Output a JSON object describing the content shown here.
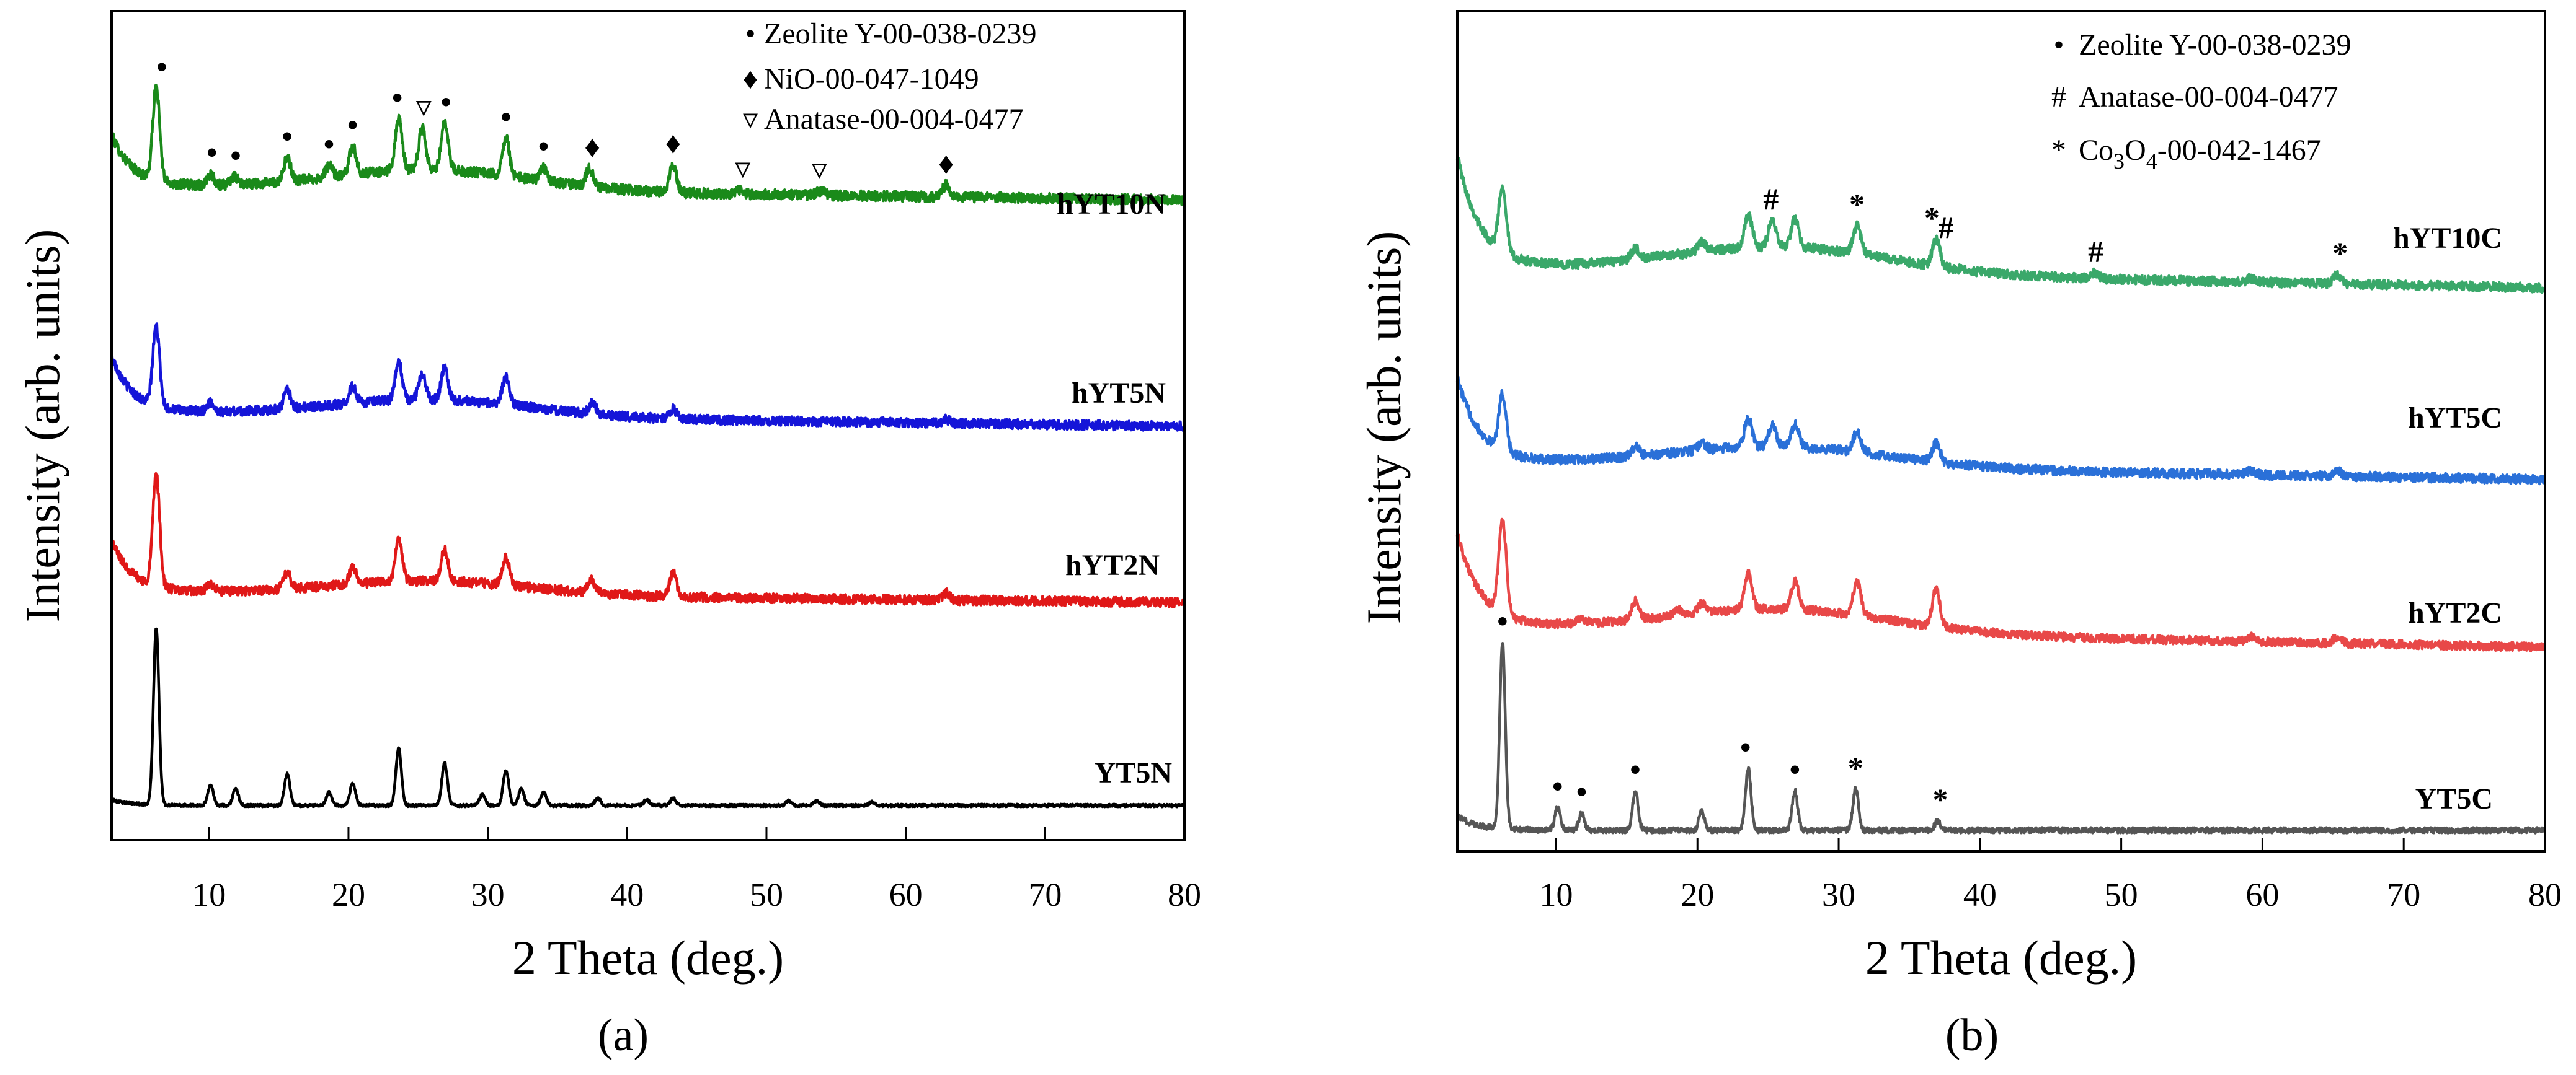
{
  "chart_data": [
    {
      "type": "line",
      "panel_label_text": "(a)",
      "xlabel": "2 Theta (deg.)",
      "ylabel": "Intensity (arb. units)",
      "xlim": [
        3,
        80
      ],
      "x_ticks": [
        10,
        20,
        30,
        40,
        50,
        60,
        70,
        80
      ],
      "y_ticks_shown": false,
      "legend": {
        "placement": "top-right",
        "entries": [
          {
            "symbol": "dot",
            "glyph": "•",
            "text": "Zeolite Y-00-038-0239"
          },
          {
            "symbol": "diamond",
            "glyph": "♦",
            "text": "NiO-00-047-1049"
          },
          {
            "symbol": "triangle-down",
            "glyph": "▿",
            "text": "Anatase-00-004-0477"
          }
        ]
      },
      "series": [
        {
          "name": "hYT10N",
          "color": "#1a8a1a",
          "baseline": 3.28,
          "slope": -0.002,
          "amorphous": {
            "amp": 0.22,
            "center": 26,
            "width": 10
          },
          "low_angle": {
            "amp": 0.55,
            "width": 1.5
          },
          "noise": 0.055,
          "peaks": [
            [
              6.2,
              1.0
            ],
            [
              10.1,
              0.12
            ],
            [
              11.8,
              0.08
            ],
            [
              15.6,
              0.25
            ],
            [
              18.6,
              0.12
            ],
            [
              20.3,
              0.3
            ],
            [
              23.6,
              0.55
            ],
            [
              25.3,
              0.45
            ],
            [
              26.9,
              0.5
            ],
            [
              31.3,
              0.4
            ],
            [
              34.0,
              0.14
            ],
            [
              37.3,
              0.2
            ],
            [
              43.3,
              0.3
            ],
            [
              48.1,
              0.05
            ],
            [
              53.9,
              0.05
            ],
            [
              62.9,
              0.13
            ]
          ],
          "peak_width": 0.35,
          "markers": [
            {
              "x": 6.6,
              "h": 1.0,
              "glyph": "•"
            },
            {
              "x": 10.2,
              "h": 0.12,
              "glyph": "•"
            },
            {
              "x": 11.9,
              "h": 0.08,
              "glyph": "•"
            },
            {
              "x": 15.6,
              "h": 0.25,
              "glyph": "•"
            },
            {
              "x": 18.6,
              "h": 0.12,
              "glyph": "•"
            },
            {
              "x": 20.3,
              "h": 0.3,
              "glyph": "•"
            },
            {
              "x": 23.5,
              "h": 0.55,
              "glyph": "•"
            },
            {
              "x": 25.4,
              "h": 0.45,
              "glyph": "▿"
            },
            {
              "x": 27.0,
              "h": 0.5,
              "glyph": "•"
            },
            {
              "x": 31.3,
              "h": 0.4,
              "glyph": "•"
            },
            {
              "x": 34.0,
              "h": 0.14,
              "glyph": "•"
            },
            {
              "x": 37.5,
              "h": 0.2,
              "glyph": "♦"
            },
            {
              "x": 43.3,
              "h": 0.3,
              "glyph": "♦"
            },
            {
              "x": 48.3,
              "h": 0.05,
              "glyph": "▿"
            },
            {
              "x": 53.8,
              "h": 0.05,
              "glyph": "▿"
            },
            {
              "x": 62.9,
              "h": 0.13,
              "glyph": "♦"
            }
          ]
        },
        {
          "name": "hYT5N",
          "color": "#1515d8",
          "baseline": 2.12,
          "slope": -0.002,
          "amorphous": {
            "amp": 0.18,
            "center": 26,
            "width": 10
          },
          "low_angle": {
            "amp": 0.6,
            "width": 1.5
          },
          "noise": 0.05,
          "peaks": [
            [
              6.2,
              0.85
            ],
            [
              10.1,
              0.1
            ],
            [
              15.6,
              0.2
            ],
            [
              20.3,
              0.18
            ],
            [
              23.6,
              0.4
            ],
            [
              25.3,
              0.28
            ],
            [
              26.9,
              0.34
            ],
            [
              31.3,
              0.3
            ],
            [
              37.5,
              0.12
            ],
            [
              43.3,
              0.1
            ],
            [
              62.9,
              0.04
            ]
          ],
          "peak_width": 0.35,
          "markers": []
        },
        {
          "name": "hYT2N",
          "color": "#e01818",
          "baseline": 1.02,
          "slope": -0.0015,
          "amorphous": {
            "amp": 0.15,
            "center": 26,
            "width": 10
          },
          "low_angle": {
            "amp": 0.55,
            "width": 1.5
          },
          "noise": 0.05,
          "peaks": [
            [
              6.2,
              1.2
            ],
            [
              10.1,
              0.08
            ],
            [
              15.6,
              0.18
            ],
            [
              20.3,
              0.18
            ],
            [
              23.6,
              0.45
            ],
            [
              26.9,
              0.34
            ],
            [
              31.3,
              0.3
            ],
            [
              37.4,
              0.15
            ],
            [
              43.3,
              0.26
            ],
            [
              62.9,
              0.08
            ]
          ],
          "peak_width": 0.35,
          "markers": []
        },
        {
          "name": "YT5N",
          "color": "#000000",
          "baseline": 0.0,
          "slope": 0,
          "amorphous": {
            "amp": 0.0,
            "center": 26,
            "width": 10
          },
          "low_angle": {
            "amp": 0.06,
            "width": 1.5
          },
          "noise": 0.015,
          "peaks": [
            [
              6.2,
              1.9
            ],
            [
              10.1,
              0.22
            ],
            [
              11.9,
              0.18
            ],
            [
              15.6,
              0.34
            ],
            [
              18.6,
              0.14
            ],
            [
              20.3,
              0.24
            ],
            [
              23.6,
              0.62
            ],
            [
              26.9,
              0.46
            ],
            [
              29.6,
              0.12
            ],
            [
              31.3,
              0.38
            ],
            [
              32.4,
              0.18
            ],
            [
              34.0,
              0.14
            ],
            [
              37.9,
              0.08
            ],
            [
              41.4,
              0.06
            ],
            [
              43.3,
              0.08
            ],
            [
              51.6,
              0.05
            ],
            [
              53.6,
              0.05
            ],
            [
              57.6,
              0.04
            ]
          ],
          "peak_width": 0.28,
          "markers": []
        }
      ]
    },
    {
      "type": "line",
      "panel_label_text": "(b)",
      "xlabel": "2 Theta (deg.)",
      "ylabel": "Intensity (arb. units)",
      "xlim": [
        3,
        80
      ],
      "x_ticks": [
        10,
        20,
        30,
        40,
        50,
        60,
        70,
        80
      ],
      "y_ticks_shown": false,
      "legend": {
        "placement": "top-right",
        "entries": [
          {
            "symbol": "dot",
            "glyph": "•",
            "text": "Zeolite Y-00-038-0239",
            "sub": "",
            "tail": ""
          },
          {
            "symbol": "hash",
            "glyph": "#",
            "text": "Anatase-00-004-0477",
            "sub": "",
            "tail": ""
          },
          {
            "symbol": "star",
            "glyph": "*",
            "text": "Co",
            "sub": "3",
            "tail": "O",
            "sub2": "4",
            "tail2": "-00-042-1467"
          }
        ]
      },
      "series": [
        {
          "name": "hYT10C",
          "color": "#3aa86a",
          "baseline": 3.28,
          "slope": -0.003,
          "amorphous": {
            "amp": 0.28,
            "center": 26,
            "width": 11
          },
          "low_angle": {
            "amp": 1.2,
            "width": 1.6
          },
          "noise": 0.05,
          "peaks": [
            [
              6.2,
              0.7
            ],
            [
              15.6,
              0.12
            ],
            [
              20.3,
              0.1
            ],
            [
              23.6,
              0.35
            ],
            [
              25.3,
              0.28
            ],
            [
              26.9,
              0.3
            ],
            [
              31.3,
              0.3
            ],
            [
              36.9,
              0.28
            ],
            [
              48.1,
              0.06
            ],
            [
              59.2,
              0.04
            ],
            [
              65.3,
              0.1
            ]
          ],
          "peak_width": 0.38,
          "markers": [
            {
              "x": 25.2,
              "h": 0.28,
              "glyph": "#"
            },
            {
              "x": 31.3,
              "h": 0.3,
              "glyph": "*"
            },
            {
              "x": 36.6,
              "h": 0.28,
              "glyph": "*"
            },
            {
              "x": 37.6,
              "h": 0.2,
              "glyph": "#"
            },
            {
              "x": 48.2,
              "h": 0.06,
              "glyph": "#"
            },
            {
              "x": 65.5,
              "h": 0.1,
              "glyph": "*"
            }
          ]
        },
        {
          "name": "hYT5C",
          "color": "#2a70d8",
          "baseline": 2.12,
          "slope": -0.0025,
          "amorphous": {
            "amp": 0.22,
            "center": 26,
            "width": 11
          },
          "low_angle": {
            "amp": 0.9,
            "width": 1.6
          },
          "noise": 0.05,
          "peaks": [
            [
              6.2,
              0.6
            ],
            [
              15.6,
              0.1
            ],
            [
              20.3,
              0.08
            ],
            [
              23.6,
              0.3
            ],
            [
              25.3,
              0.22
            ],
            [
              26.9,
              0.24
            ],
            [
              31.3,
              0.22
            ],
            [
              36.9,
              0.2
            ],
            [
              59.2,
              0.04
            ],
            [
              65.3,
              0.05
            ]
          ],
          "peak_width": 0.38,
          "markers": []
        },
        {
          "name": "hYT2C",
          "color": "#e84848",
          "baseline": 1.0,
          "slope": -0.003,
          "amorphous": {
            "amp": 0.25,
            "center": 26,
            "width": 11
          },
          "low_angle": {
            "amp": 1.0,
            "width": 1.6
          },
          "noise": 0.045,
          "peaks": [
            [
              6.2,
              1.0
            ],
            [
              11.8,
              0.06
            ],
            [
              15.6,
              0.2
            ],
            [
              18.6,
              0.06
            ],
            [
              20.3,
              0.1
            ],
            [
              23.6,
              0.38
            ],
            [
              26.9,
              0.3
            ],
            [
              31.3,
              0.36
            ],
            [
              36.9,
              0.4
            ],
            [
              59.2,
              0.05
            ],
            [
              65.3,
              0.07
            ]
          ],
          "peak_width": 0.38,
          "markers": []
        },
        {
          "name": "YT5C",
          "color": "#555555",
          "baseline": 0.0,
          "slope": 0,
          "amorphous": {
            "amp": 0.0,
            "center": 26,
            "width": 10
          },
          "low_angle": {
            "amp": 0.15,
            "width": 1.5
          },
          "noise": 0.03,
          "peaks": [
            [
              6.2,
              2.0
            ],
            [
              10.1,
              0.24
            ],
            [
              11.8,
              0.18
            ],
            [
              15.6,
              0.42
            ],
            [
              20.3,
              0.2
            ],
            [
              23.6,
              0.66
            ],
            [
              26.9,
              0.42
            ],
            [
              31.2,
              0.44
            ],
            [
              37.0,
              0.1
            ]
          ],
          "peak_width": 0.28,
          "markers": [
            {
              "x": 6.2,
              "h": 2.0,
              "glyph": "•"
            },
            {
              "x": 10.1,
              "h": 0.24,
              "glyph": "•"
            },
            {
              "x": 11.8,
              "h": 0.18,
              "glyph": "•"
            },
            {
              "x": 15.6,
              "h": 0.42,
              "glyph": "•"
            },
            {
              "x": 23.4,
              "h": 0.66,
              "glyph": "•"
            },
            {
              "x": 26.9,
              "h": 0.42,
              "glyph": "•"
            },
            {
              "x": 31.2,
              "h": 0.44,
              "glyph": "*"
            },
            {
              "x": 37.2,
              "h": 0.1,
              "glyph": "*"
            }
          ]
        }
      ]
    }
  ]
}
